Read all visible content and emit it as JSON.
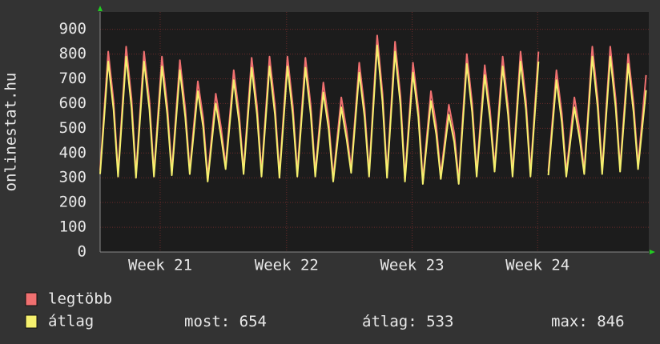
{
  "chart_data": {
    "type": "line",
    "y_label": "onlinestat.hu",
    "x": [
      0,
      0.45,
      0.75,
      1,
      1.45,
      1.75,
      2,
      2.45,
      2.75,
      3,
      3.45,
      3.75,
      4,
      4.45,
      4.75,
      5,
      5.45,
      5.75,
      6,
      6.45,
      6.75,
      7,
      7.45,
      7.75,
      8,
      8.45,
      8.75,
      9,
      9.45,
      9.75,
      10,
      10.45,
      10.75,
      11,
      11.45,
      11.75,
      12,
      12.45,
      12.75,
      13,
      13.45,
      13.75,
      14,
      14.45,
      14.75,
      15,
      15.45,
      15.75,
      16,
      16.45,
      16.75,
      17,
      17.45,
      17.75,
      18,
      18.45,
      18.75,
      19,
      19.45,
      19.75,
      20,
      20.45,
      20.75,
      21,
      21.45,
      21.75,
      22,
      22.45,
      22.75,
      23,
      23.45,
      23.75,
      24,
      24.45,
      24.75,
      25,
      25.45,
      25.75,
      26,
      26.45,
      26.75,
      27,
      27.45,
      27.75,
      28,
      28.45,
      28.75,
      29,
      29.45,
      29.75,
      30,
      30.45
    ],
    "xlim": [
      0,
      30.6
    ],
    "xticks": [
      {
        "value": 3.35,
        "label": "Week 21"
      },
      {
        "value": 10.4,
        "label": "Week 22"
      },
      {
        "value": 17.4,
        "label": "Week 23"
      },
      {
        "value": 24.4,
        "label": "Week 24"
      }
    ],
    "ylim": [
      0,
      970
    ],
    "yticks": [
      0,
      100,
      200,
      300,
      400,
      500,
      600,
      700,
      800,
      900
    ],
    "grid": true,
    "series": [
      {
        "name": "legtöbb",
        "color": "#f07070",
        "values": [
          330,
          810,
          610,
          320,
          830,
          620,
          315,
          810,
          610,
          320,
          790,
          590,
          325,
          775,
          580,
          330,
          690,
          540,
          300,
          640,
          500,
          350,
          735,
          560,
          330,
          785,
          590,
          320,
          790,
          590,
          315,
          790,
          590,
          320,
          785,
          590,
          320,
          685,
          530,
          300,
          625,
          490,
          335,
          765,
          580,
          320,
          875,
          640,
          315,
          850,
          630,
          300,
          765,
          580,
          290,
          650,
          510,
          310,
          595,
          480,
          290,
          800,
          600,
          320,
          755,
          570,
          340,
          790,
          590,
          320,
          810,
          610,
          320,
          810,
          null,
          325,
          735,
          560,
          320,
          625,
          490,
          330,
          830,
          620,
          330,
          830,
          620,
          340,
          800,
          600,
          350,
          715
        ]
      },
      {
        "name": "átlag",
        "color": "#f5f06e",
        "values": [
          315,
          770,
          575,
          305,
          790,
          585,
          300,
          770,
          575,
          305,
          750,
          555,
          310,
          735,
          545,
          315,
          650,
          505,
          285,
          600,
          465,
          335,
          695,
          525,
          315,
          745,
          555,
          305,
          750,
          555,
          300,
          750,
          555,
          305,
          745,
          555,
          305,
          645,
          495,
          285,
          585,
          455,
          320,
          725,
          545,
          305,
          835,
          605,
          300,
          810,
          595,
          285,
          725,
          545,
          275,
          610,
          475,
          295,
          555,
          445,
          275,
          760,
          565,
          305,
          715,
          535,
          325,
          750,
          555,
          305,
          770,
          575,
          305,
          770,
          null,
          310,
          695,
          525,
          305,
          585,
          455,
          315,
          790,
          585,
          315,
          790,
          585,
          325,
          760,
          565,
          335,
          654
        ]
      }
    ],
    "stats": [
      {
        "label": "most:",
        "value": 654
      },
      {
        "label": "átlag:",
        "value": 533
      },
      {
        "label": "max:",
        "value": 846
      }
    ]
  }
}
